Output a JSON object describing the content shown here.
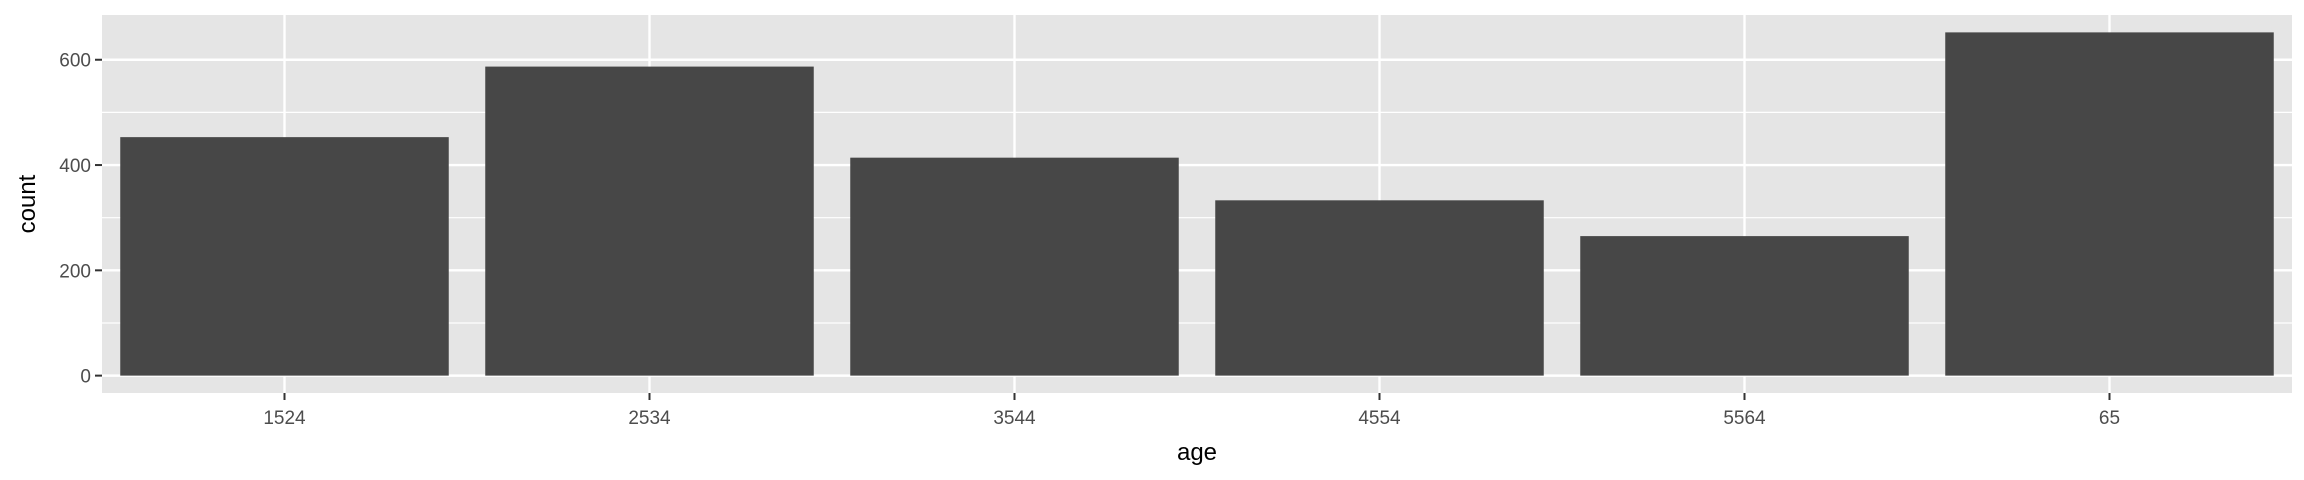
{
  "chart_data": {
    "type": "bar",
    "title": "",
    "xlabel": "age",
    "ylabel": "count",
    "categories": [
      "1524",
      "2534",
      "3544",
      "4554",
      "5564",
      "65"
    ],
    "values": [
      453,
      587,
      414,
      333,
      265,
      652
    ],
    "ylim": [
      -33,
      685
    ],
    "yticks": [
      0,
      200,
      400,
      600
    ],
    "ytick_labels": [
      "0",
      "200",
      "400",
      "600"
    ],
    "grid": true,
    "legend": "none",
    "colors": {
      "bar": "#474747",
      "panel": "#e5e5e5",
      "grid": "#ffffff",
      "tick": "#333333",
      "tick_label": "#4d4d4d",
      "axis_title": "#000000"
    }
  }
}
